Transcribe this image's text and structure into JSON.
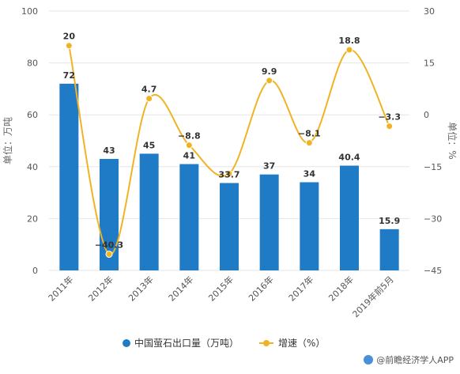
{
  "chart_data": {
    "type": "bar",
    "categories": [
      "2011年",
      "2012年",
      "2013年",
      "2014年",
      "2015年",
      "2016年",
      "2017年",
      "2018年",
      "2019年前5月"
    ],
    "series": [
      {
        "name": "中国萤石出口量（万吨）",
        "type": "bar",
        "axis": "left",
        "color": "#1f7bc6",
        "values": [
          72,
          43,
          45,
          41,
          33.7,
          37,
          34,
          40.4,
          15.9
        ],
        "labels": [
          "72",
          "43",
          "45",
          "41",
          "33.7",
          "37",
          "34",
          "40.4",
          "15.9"
        ]
      },
      {
        "name": "增速（%）",
        "type": "line",
        "axis": "right",
        "color": "#f0b323",
        "values": [
          20,
          -40.3,
          4.7,
          -8.8,
          -17,
          9.9,
          -8.1,
          18.8,
          -3.3
        ],
        "labels": [
          "20",
          "-40.3",
          "4.7",
          "-8.8",
          "",
          "9.9",
          "-8.1",
          "18.8",
          "-3.3"
        ]
      }
    ],
    "ylabel": "单位：万吨",
    "y2label": "单位：%",
    "ylim": [
      0,
      100
    ],
    "yticks": [
      "0",
      "20",
      "40",
      "60",
      "80",
      "100"
    ],
    "y2lim": [
      -45,
      30
    ],
    "y2ticks": [
      "-45",
      "-30",
      "-15",
      "0",
      "15",
      "30"
    ],
    "grid": true,
    "legend_position": "bottom"
  },
  "footer": {
    "source": "@前瞻经济学人APP"
  }
}
